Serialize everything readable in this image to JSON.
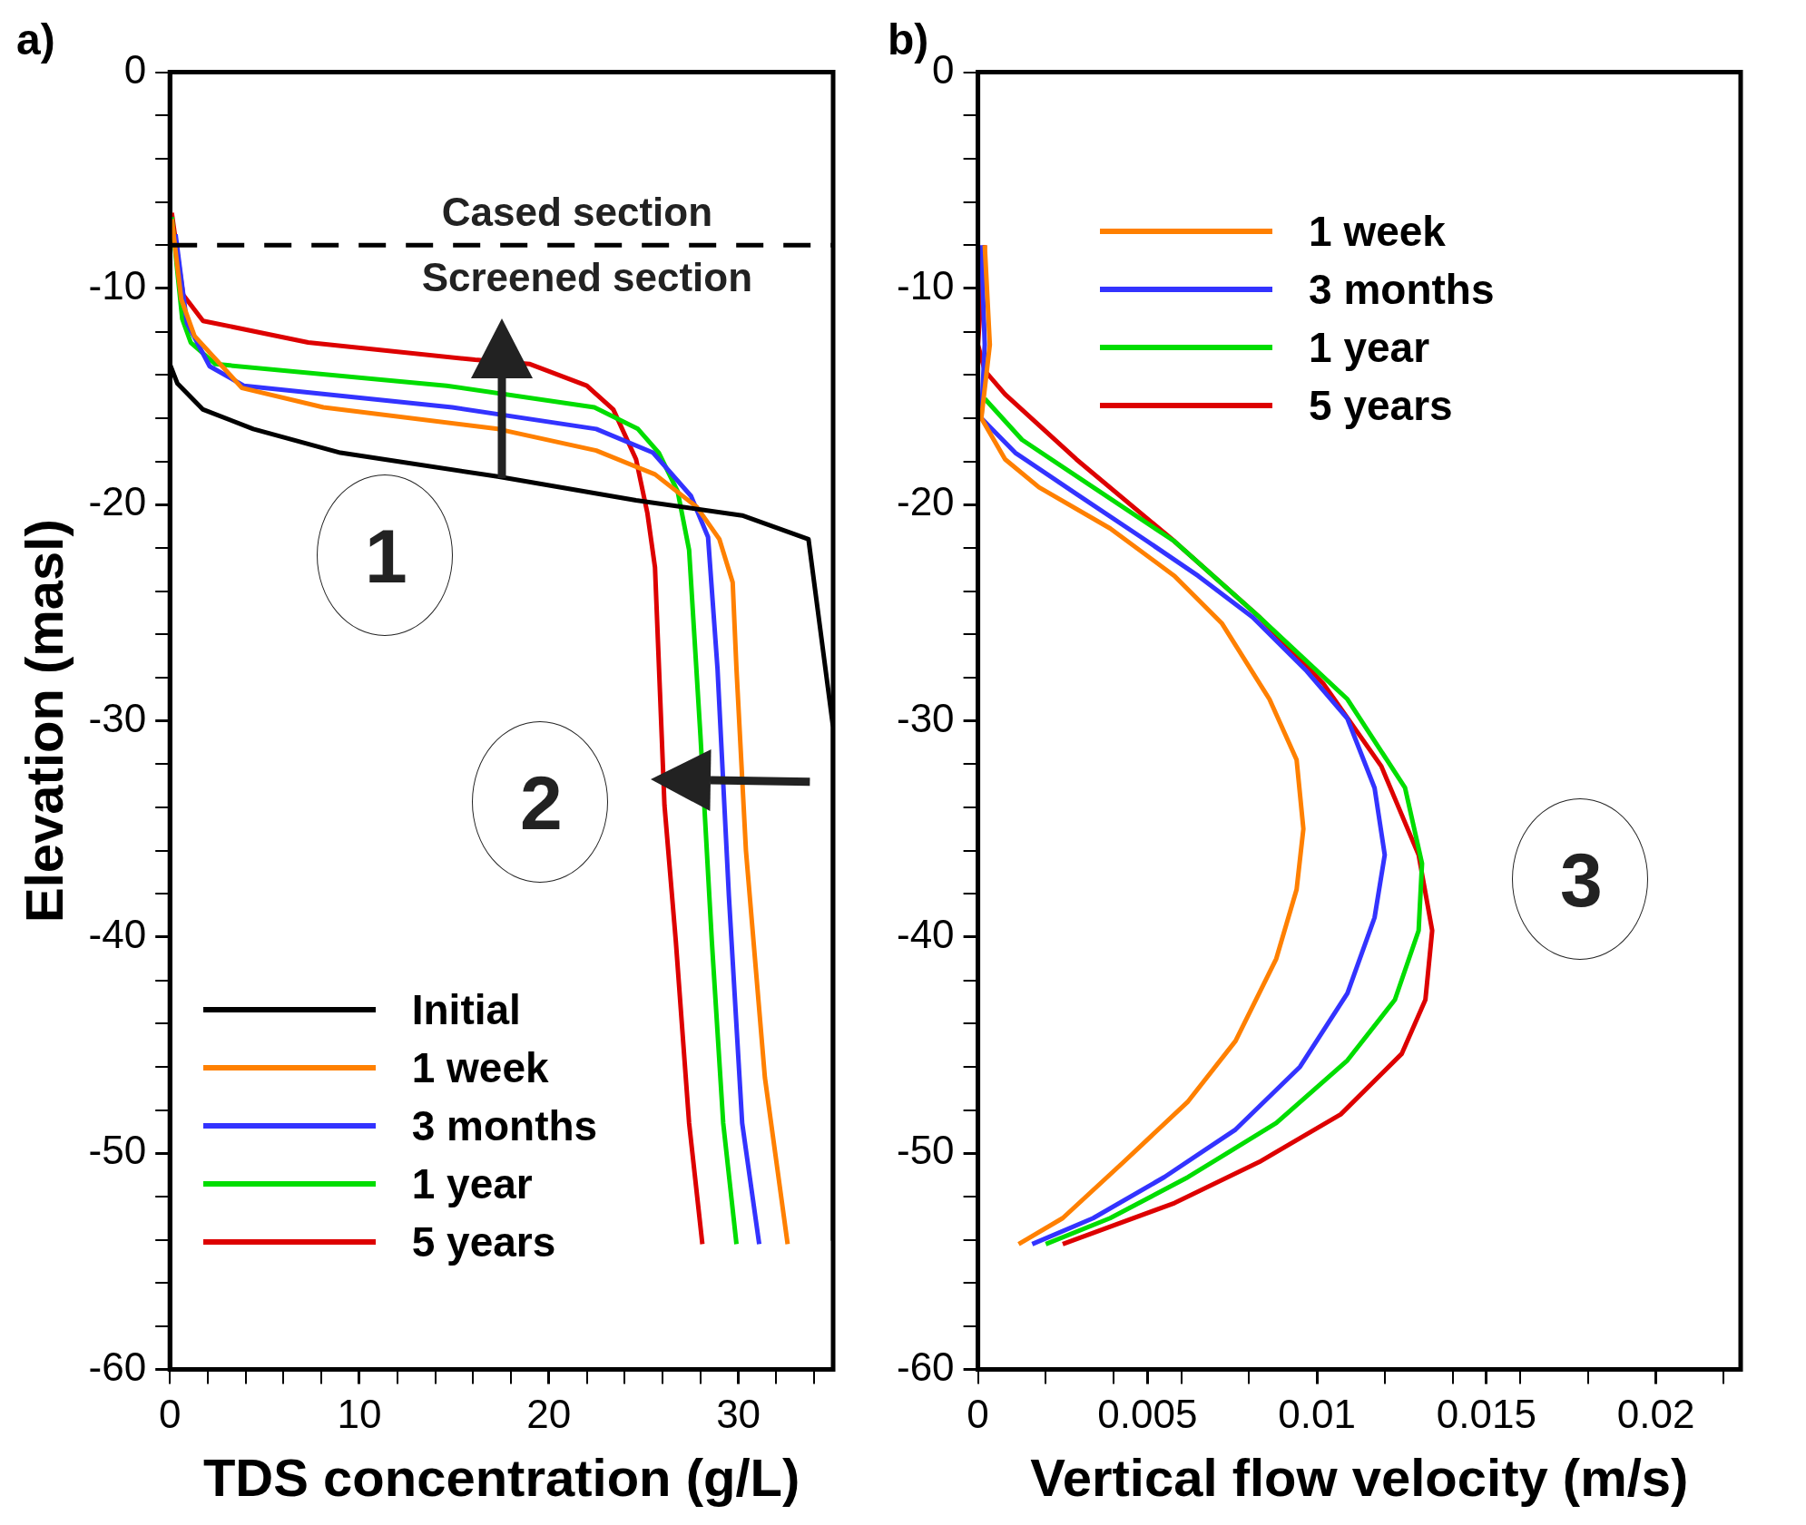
{
  "chart_data": [
    {
      "type": "line",
      "title": "a)",
      "xlabel": "TDS concentration (g/L)",
      "ylabel": "Elevation (masl)",
      "xlim": [
        0,
        35
      ],
      "xticks": [
        0,
        {
          "value": 2,
          "label": null
        },
        {
          "value": 4,
          "label": null
        },
        {
          "value": 6,
          "label": null
        },
        {
          "value": 8,
          "label": null
        },
        10,
        {
          "value": 12,
          "label": null
        },
        {
          "value": 14,
          "label": null
        },
        {
          "value": 16,
          "label": null
        },
        {
          "value": 18,
          "label": null
        },
        20,
        {
          "value": 22,
          "label": null
        },
        {
          "value": 24,
          "label": null
        },
        {
          "value": 26,
          "label": null
        },
        {
          "value": 28,
          "label": null
        },
        30,
        {
          "value": 32,
          "label": null
        },
        {
          "value": 34,
          "label": null
        }
      ],
      "ylim": [
        -60,
        0
      ],
      "yticks": [
        -60,
        {
          "value": -58,
          "label": null
        },
        {
          "value": -56,
          "label": null
        },
        {
          "value": -54,
          "label": null
        },
        {
          "value": -52,
          "label": null
        },
        -50,
        {
          "value": -48,
          "label": null
        },
        {
          "value": -46,
          "label": null
        },
        {
          "value": -44,
          "label": null
        },
        {
          "value": -42,
          "label": null
        },
        -40,
        {
          "value": -38,
          "label": null
        },
        {
          "value": -36,
          "label": null
        },
        {
          "value": -34,
          "label": null
        },
        {
          "value": -32,
          "label": null
        },
        -30,
        {
          "value": -28,
          "label": null
        },
        {
          "value": -26,
          "label": null
        },
        {
          "value": -24,
          "label": null
        },
        {
          "value": -22,
          "label": null
        },
        -20,
        {
          "value": -18,
          "label": null
        },
        {
          "value": -16,
          "label": null
        },
        {
          "value": -14,
          "label": null
        },
        {
          "value": -12,
          "label": null
        },
        -10,
        {
          "value": -8,
          "label": null
        },
        {
          "value": -6,
          "label": null
        },
        {
          "value": -4,
          "label": null
        },
        {
          "value": -2,
          "label": null
        },
        0
      ],
      "grid": false,
      "legend": "bottom left",
      "marker": "none",
      "line_style": "solid",
      "ref_lines": [
        {
          "axis": "y",
          "value": -8,
          "color": "#000000",
          "line_style": "dashed"
        }
      ],
      "annotations": [
        "Cased section",
        "Screened section",
        "1",
        "2"
      ],
      "series": [
        {
          "name": "Initial",
          "color": "#000000",
          "x": [
            0,
            0.4,
            1.75,
            4.4,
            9,
            17.3,
            24.6,
            30.2,
            33.7,
            35,
            35
          ],
          "values": [
            -13.5,
            -14.4,
            -15.6,
            -16.5,
            -17.6,
            -18.7,
            -19.8,
            -20.5,
            -21.6,
            -30.3,
            -54
          ]
        },
        {
          "name": "1 week",
          "color": "#ff8000",
          "x": [
            0.1,
            0.6,
            1.3,
            3.8,
            8.1,
            17.3,
            22.5,
            25.6,
            27.8,
            29,
            29.7,
            29.9,
            30.4,
            31.4,
            32.6
          ],
          "values": [
            -6.8,
            -10.5,
            -12.2,
            -14.6,
            -15.5,
            -16.5,
            -17.5,
            -18.6,
            -20.1,
            -21.6,
            -23.6,
            -27.6,
            -36,
            -46.5,
            -54.2
          ]
        },
        {
          "name": "3 months",
          "color": "#3333ff",
          "x": [
            0.3,
            0.9,
            2.1,
            3.9,
            14.9,
            22.5,
            25.5,
            27.5,
            28.4,
            28.9,
            29.5,
            30.2,
            31.1
          ],
          "values": [
            -7.5,
            -11.6,
            -13.6,
            -14.5,
            -15.5,
            -16.5,
            -17.6,
            -19.6,
            -21.5,
            -27.6,
            -38.1,
            -48.6,
            -54.2
          ]
        },
        {
          "name": "1 year",
          "color": "#00dd00",
          "x": [
            0.1,
            0.65,
            1.1,
            2.4,
            14.6,
            22.4,
            24.7,
            25.8,
            26.8,
            27.4,
            28,
            28.6,
            29.2,
            29.9
          ],
          "values": [
            -6.7,
            -11.4,
            -12.5,
            -13.5,
            -14.5,
            -15.5,
            -16.5,
            -17.6,
            -19.4,
            -22.1,
            -30.7,
            -40.2,
            -48.6,
            -54.2
          ]
        },
        {
          "name": "5 years",
          "color": "#dd0000",
          "x": [
            0.1,
            0.7,
            1.75,
            7.3,
            16.1,
            19,
            22,
            23.4,
            24.6,
            25.2,
            25.6,
            26.1,
            26.7,
            27.4,
            28.1
          ],
          "values": [
            -6.5,
            -10.3,
            -11.5,
            -12.5,
            -13.3,
            -13.5,
            -14.5,
            -15.6,
            -17.9,
            -20.4,
            -22.9,
            -33.9,
            -40.2,
            -48.6,
            -54.2
          ]
        }
      ]
    },
    {
      "type": "line",
      "title": "b)",
      "xlabel": "Vertical flow velocity (m/s)",
      "xlim": [
        0,
        0.0225
      ],
      "xticks": [
        0,
        {
          "value": 0.002,
          "label": null
        },
        {
          "value": 0.004,
          "label": null
        },
        0.005,
        {
          "value": 0.006,
          "label": null
        },
        {
          "value": 0.008,
          "label": null
        },
        0.01,
        {
          "value": 0.012,
          "label": null
        },
        {
          "value": 0.014,
          "label": null
        },
        0.015,
        {
          "value": 0.016,
          "label": null
        },
        {
          "value": 0.018,
          "label": null
        },
        0.02,
        {
          "value": 0.022,
          "label": null
        }
      ],
      "ylim": [
        -60,
        0
      ],
      "yticks": [
        -60,
        {
          "value": -58,
          "label": null
        },
        {
          "value": -56,
          "label": null
        },
        {
          "value": -54,
          "label": null
        },
        {
          "value": -52,
          "label": null
        },
        -50,
        {
          "value": -48,
          "label": null
        },
        {
          "value": -46,
          "label": null
        },
        {
          "value": -44,
          "label": null
        },
        {
          "value": -42,
          "label": null
        },
        -40,
        {
          "value": -38,
          "label": null
        },
        {
          "value": -36,
          "label": null
        },
        {
          "value": -34,
          "label": null
        },
        {
          "value": -32,
          "label": null
        },
        -30,
        {
          "value": -28,
          "label": null
        },
        {
          "value": -26,
          "label": null
        },
        {
          "value": -24,
          "label": null
        },
        {
          "value": -22,
          "label": null
        },
        -20,
        {
          "value": -18,
          "label": null
        },
        {
          "value": -16,
          "label": null
        },
        {
          "value": -14,
          "label": null
        },
        {
          "value": -12,
          "label": null
        },
        -10,
        {
          "value": -8,
          "label": null
        },
        {
          "value": -6,
          "label": null
        },
        {
          "value": -4,
          "label": null
        },
        {
          "value": -2,
          "label": null
        },
        0
      ],
      "grid": false,
      "legend": "top",
      "marker": "none",
      "line_style": "solid",
      "annotations": [
        "3"
      ],
      "series": [
        {
          "name": "1 week",
          "color": "#ff8000",
          "x": [
            0.0002,
            0.00035,
            0.0001,
            0.0008,
            0.0018,
            0.0039,
            0.0058,
            0.0072,
            0.0086,
            0.0094,
            0.0096,
            0.0094,
            0.0088,
            0.0076,
            0.0062,
            0.0043,
            0.0025,
            0.0012
          ],
          "values": [
            -8,
            -12.6,
            -16,
            -17.9,
            -19.2,
            -21.1,
            -23.3,
            -25.5,
            -29,
            -31.8,
            -35,
            -37.8,
            -41,
            -44.8,
            -47.6,
            -50.4,
            -53,
            -54.2
          ]
        },
        {
          "name": "3 months",
          "color": "#3333ff",
          "x": [
            0.0001,
            0.0002,
            0.0001,
            0.0011,
            0.0029,
            0.005,
            0.0065,
            0.0081,
            0.0097,
            0.0109,
            0.0117,
            0.012,
            0.0117,
            0.0109,
            0.0095,
            0.0076,
            0.0055,
            0.0034,
            0.0016
          ],
          "values": [
            -8,
            -12.6,
            -16,
            -17.6,
            -19.5,
            -21.7,
            -23.3,
            -25.2,
            -27.7,
            -29.9,
            -33.1,
            -36.2,
            -39.1,
            -42.6,
            -46,
            -48.9,
            -51.1,
            -53,
            -54.2
          ]
        },
        {
          "name": "1 year",
          "color": "#00dd00",
          "x": [
            0.0002,
            0.0013,
            0.0034,
            0.0058,
            0.0083,
            0.0109,
            0.0126,
            0.0131,
            0.013,
            0.0123,
            0.0109,
            0.0088,
            0.0062,
            0.0039,
            0.002
          ],
          "values": [
            -15.1,
            -17,
            -19.2,
            -21.7,
            -25.2,
            -29,
            -33.1,
            -36.6,
            -39.7,
            -42.9,
            -45.7,
            -48.6,
            -51.1,
            -53,
            -54.2
          ]
        },
        {
          "name": "5 years",
          "color": "#dd0000",
          "x": [
            0.0002,
            0,
            0.0002,
            0.0008,
            0.0029,
            0.0058,
            0.0083,
            0.0102,
            0.0119,
            0.013,
            0.0134,
            0.0132,
            0.0125,
            0.0107,
            0.0083,
            0.0058,
            0.0025
          ],
          "values": [
            -8,
            -12.6,
            -13.8,
            -14.9,
            -17.9,
            -21.7,
            -25.2,
            -28.3,
            -32.1,
            -36.2,
            -39.7,
            -42.9,
            -45.4,
            -48.2,
            -50.4,
            -52.3,
            -54.2
          ]
        }
      ]
    }
  ]
}
